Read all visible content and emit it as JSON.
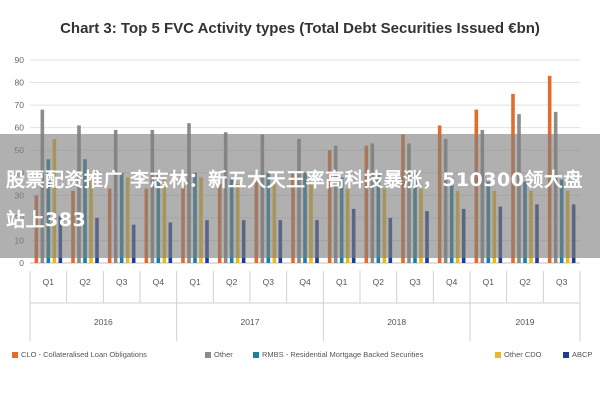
{
  "chart_data": {
    "type": "bar",
    "title": "Chart 3: Top 5 FVC Activity types (Total Debt Securities Issued €bn)",
    "ylim": [
      0,
      90
    ],
    "yticks": [
      0,
      10,
      20,
      30,
      40,
      50,
      60,
      70,
      80,
      90
    ],
    "grid": true,
    "legend_position": "bottom",
    "categories": [
      "Q1",
      "Q2",
      "Q3",
      "Q4",
      "Q1",
      "Q2",
      "Q3",
      "Q4",
      "Q1",
      "Q2",
      "Q3",
      "Q4",
      "Q1",
      "Q2",
      "Q3"
    ],
    "years": [
      {
        "label": "2016",
        "count": 4
      },
      {
        "label": "2017",
        "count": 4
      },
      {
        "label": "2018",
        "count": 4
      },
      {
        "label": "2019",
        "count": 3
      }
    ],
    "series": [
      {
        "name": "CLO - Collateralised Loan Obligations",
        "color": "#e36c2c",
        "values": [
          30,
          32,
          33,
          33,
          34,
          35,
          36,
          40,
          50,
          52,
          57,
          61,
          68,
          75,
          83
        ]
      },
      {
        "name": "Other",
        "color": "#8c8c8c",
        "values": [
          68,
          61,
          59,
          59,
          62,
          58,
          57,
          55,
          52,
          53,
          53,
          55,
          59,
          66,
          67
        ]
      },
      {
        "name": "RMBS - Residential Mortgage Backed Securities",
        "color": "#1f7f9e",
        "values": [
          46,
          46,
          40,
          40,
          40,
          38,
          40,
          40,
          38,
          40,
          40,
          38,
          36,
          36,
          37
        ]
      },
      {
        "name": "Other CDO",
        "color": "#e8b923",
        "values": [
          55,
          40,
          38,
          38,
          38,
          35,
          35,
          35,
          33,
          33,
          33,
          32,
          32,
          32,
          32
        ]
      },
      {
        "name": "ABCP",
        "color": "#1f3d8c",
        "values": [
          21,
          20,
          17,
          18,
          19,
          19,
          19,
          19,
          24,
          20,
          23,
          24,
          25,
          26,
          26
        ]
      }
    ]
  },
  "overlay": {
    "headline": "股票配资推广 李志林：新五大天王率高科技暴涨，510300领大盘站上383"
  }
}
